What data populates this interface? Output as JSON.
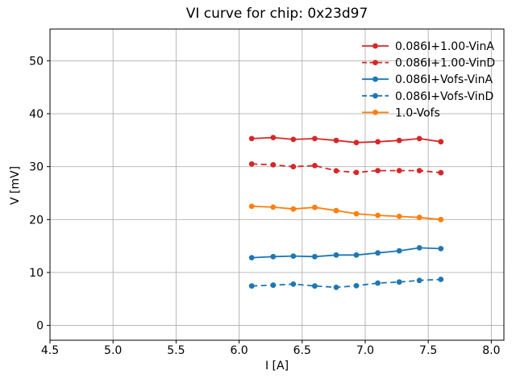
{
  "chart_data": {
    "type": "line",
    "title": "VI curve for chip: 0x23d97",
    "xlabel": "I [A]",
    "ylabel": "V [mV]",
    "xlim": [
      4.5,
      8.1
    ],
    "ylim": [
      -2.8,
      56.0
    ],
    "xticks": [
      "4.5",
      "5.0",
      "5.5",
      "6.0",
      "6.5",
      "7.0",
      "7.5",
      "8.0"
    ],
    "yticks": [
      "0",
      "10",
      "20",
      "30",
      "40",
      "50"
    ],
    "grid": true,
    "grid_color": "#b0b0b0",
    "legend_position": "upper right",
    "legend_frame": false,
    "x": [
      6.1,
      6.27,
      6.43,
      6.6,
      6.77,
      6.93,
      7.1,
      7.27,
      7.43,
      7.6
    ],
    "series": [
      {
        "name": "0.086I+1.00-VinA",
        "color": "#d62728",
        "style": "solid",
        "marker": "circle",
        "values": [
          35.3,
          35.5,
          35.15,
          35.3,
          34.95,
          34.55,
          34.7,
          34.95,
          35.3,
          34.7
        ]
      },
      {
        "name": "0.086I+1.00-VinD",
        "color": "#d62728",
        "style": "dashed",
        "marker": "circle",
        "values": [
          30.5,
          30.35,
          30.0,
          30.2,
          29.2,
          28.9,
          29.25,
          29.25,
          29.25,
          28.85
        ]
      },
      {
        "name": "0.086I+Vofs-VinA",
        "color": "#1f77b4",
        "style": "solid",
        "marker": "circle",
        "values": [
          12.8,
          13.0,
          13.1,
          13.0,
          13.3,
          13.3,
          13.7,
          14.1,
          14.65,
          14.5
        ]
      },
      {
        "name": "0.086I+Vofs-VinD",
        "color": "#1f77b4",
        "style": "dashed",
        "marker": "circle",
        "values": [
          7.45,
          7.6,
          7.8,
          7.45,
          7.2,
          7.5,
          8.0,
          8.2,
          8.5,
          8.7
        ]
      },
      {
        "name": "1.0-Vofs",
        "color": "#ff7f0e",
        "style": "solid",
        "marker": "circle",
        "values": [
          22.5,
          22.35,
          22.0,
          22.3,
          21.7,
          21.1,
          20.8,
          20.6,
          20.4,
          20.0
        ]
      }
    ]
  }
}
